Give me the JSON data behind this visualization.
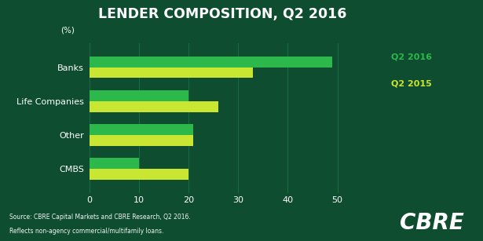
{
  "title": "LENDER COMPOSITION, Q2 2016",
  "categories": [
    "CMBS",
    "Other",
    "Life Companies",
    "Banks"
  ],
  "q2_2016": [
    10,
    21,
    20,
    49
  ],
  "q2_2015": [
    20,
    21,
    26,
    33
  ],
  "color_2016": "#2db84b",
  "color_2015": "#c8e632",
  "bg_color": "#0e4d30",
  "text_color": "#ffffff",
  "xlim": [
    0,
    55
  ],
  "xticks": [
    0,
    10,
    20,
    30,
    40,
    50
  ],
  "legend_q2_2016": "Q2 2016",
  "legend_q2_2015": "Q2 2015",
  "legend_color_2016": "#2db84b",
  "legend_color_2015": "#c8e632",
  "source_line1": "Source: CBRE Capital Markets and CBRE Research, Q2 2016.",
  "source_line2": "Reflects non-agency commercial/multifamily loans.",
  "cbre_text": "CBRE",
  "bar_height": 0.32,
  "ylabel_pct": "(%)",
  "grid_color": "#1a6b42"
}
